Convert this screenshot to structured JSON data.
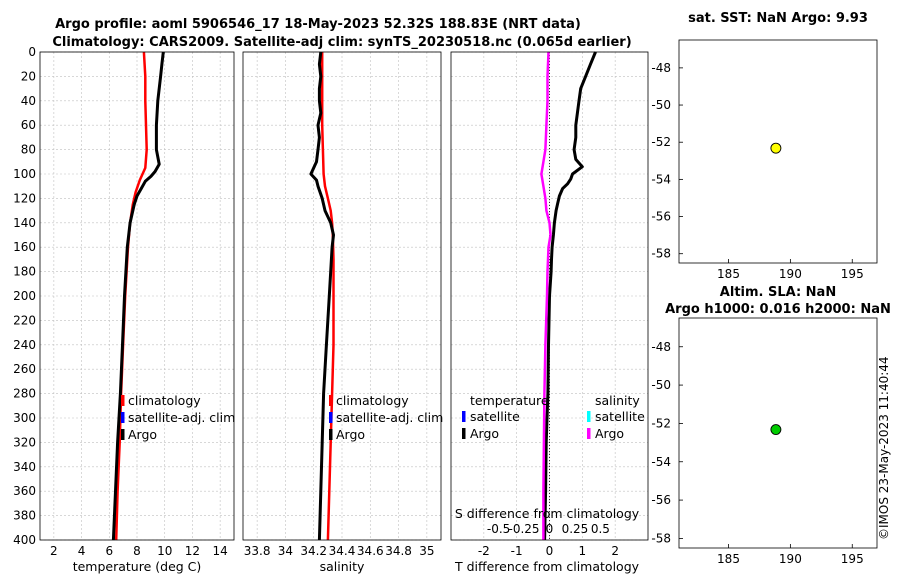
{
  "title": {
    "line1": "Argo profile: aoml 5906546_17 18-May-2023 52.32S 188.83E (NRT data)",
    "line2": "Climatology: CARS2009. Satellite-adj clim: synTS_20230518.nc (0.065d earlier)"
  },
  "timestamp": "©IMOS 23-May-2023 11:40:44",
  "colors": {
    "climatology": "#ff0000",
    "satellite": "#0000ff",
    "argo": "#000000",
    "sal_satellite": "#00ffff",
    "sal_argo": "#ff00ff",
    "sst_dot": "#ffff00",
    "sla_dot": "#00cc00",
    "grid": "#c0c0c0"
  },
  "chart_data": [
    {
      "id": "temperature",
      "type": "line",
      "xlabel": "temperature (deg C)",
      "xlim": [
        1,
        15
      ],
      "xticks": [
        2,
        4,
        6,
        8,
        10,
        12,
        14
      ],
      "ylim": [
        0,
        400
      ],
      "yticks": [
        0,
        20,
        40,
        60,
        80,
        100,
        120,
        140,
        160,
        180,
        200,
        220,
        240,
        260,
        280,
        300,
        320,
        340,
        360,
        380,
        400
      ],
      "legend": [
        "climatology",
        "satellite-adj. clim",
        "Argo"
      ],
      "series": [
        {
          "name": "climatology",
          "depth": [
            0,
            20,
            40,
            60,
            80,
            95,
            105,
            115,
            125,
            140,
            160,
            180,
            200,
            240,
            280,
            320,
            360,
            400
          ],
          "values": [
            8.5,
            8.6,
            8.6,
            8.65,
            8.7,
            8.6,
            8.2,
            7.9,
            7.7,
            7.5,
            7.35,
            7.25,
            7.15,
            7.0,
            6.85,
            6.75,
            6.6,
            6.5
          ]
        },
        {
          "name": "Argo",
          "depth": [
            0,
            10,
            20,
            40,
            60,
            80,
            92,
            98,
            102,
            106,
            112,
            118,
            125,
            140,
            160,
            180,
            200,
            240,
            280,
            320,
            360,
            400
          ],
          "values": [
            9.9,
            9.8,
            9.7,
            9.5,
            9.4,
            9.4,
            9.6,
            9.3,
            9.0,
            8.6,
            8.3,
            8.0,
            7.8,
            7.5,
            7.3,
            7.2,
            7.1,
            6.95,
            6.8,
            6.6,
            6.45,
            6.3
          ]
        }
      ]
    },
    {
      "id": "salinity",
      "type": "line",
      "xlabel": "salinity",
      "xlim": [
        33.7,
        35.1
      ],
      "xticks": [
        33.8,
        34,
        34.2,
        34.4,
        34.6,
        34.8,
        35
      ],
      "xticklabels": [
        "33.8",
        "34",
        "34.2",
        "34.4",
        "34.6",
        "34.8",
        "35"
      ],
      "ylim": [
        0,
        400
      ],
      "legend": [
        "climatology",
        "satellite-adj. clim",
        "Argo"
      ],
      "series": [
        {
          "name": "climatology",
          "depth": [
            0,
            20,
            40,
            60,
            80,
            100,
            110,
            120,
            130,
            140,
            150,
            170,
            200,
            240,
            280,
            320,
            360,
            400
          ],
          "values": [
            34.26,
            34.26,
            34.26,
            34.26,
            34.265,
            34.27,
            34.28,
            34.3,
            34.32,
            34.33,
            34.335,
            34.34,
            34.34,
            34.34,
            34.33,
            34.32,
            34.31,
            34.3
          ]
        },
        {
          "name": "Argo",
          "depth": [
            0,
            10,
            20,
            30,
            40,
            50,
            60,
            70,
            80,
            90,
            95,
            100,
            105,
            110,
            120,
            130,
            140,
            150,
            160,
            180,
            200,
            240,
            280,
            320,
            360,
            400
          ],
          "values": [
            34.25,
            34.24,
            34.25,
            34.24,
            34.24,
            34.25,
            34.23,
            34.24,
            34.23,
            34.22,
            34.2,
            34.18,
            34.22,
            34.23,
            34.26,
            34.28,
            34.32,
            34.34,
            34.33,
            34.32,
            34.31,
            34.29,
            34.27,
            34.26,
            34.25,
            34.24
          ]
        }
      ]
    },
    {
      "id": "difference",
      "type": "line",
      "xlabel": "T difference from climatology",
      "xlabel_top": "S difference from climatology",
      "xlim": [
        -3,
        3
      ],
      "xticks": [
        -2,
        -1,
        0,
        1,
        2
      ],
      "s_ticks": [
        -0.5,
        -0.25,
        0,
        0.25,
        0.5
      ],
      "s_ticklabels": [
        "-0.5",
        "-0.25",
        "0",
        "0.25",
        "0.5"
      ],
      "ylim": [
        0,
        400
      ],
      "legend_left": {
        "title": "temperature",
        "items": [
          "satellite",
          "Argo"
        ]
      },
      "legend_right": {
        "title": "salinity",
        "items": [
          "satellite",
          "Argo"
        ]
      },
      "series": [
        {
          "name": "T Argo",
          "depth": [
            0,
            10,
            20,
            30,
            40,
            50,
            60,
            70,
            80,
            88,
            94,
            100,
            104,
            108,
            112,
            118,
            124,
            130,
            140,
            150,
            160,
            170,
            180,
            200,
            240,
            280,
            320,
            360,
            400
          ],
          "values": [
            1.4,
            1.25,
            1.1,
            0.95,
            0.9,
            0.85,
            0.8,
            0.8,
            0.75,
            0.8,
            1.0,
            0.7,
            0.65,
            0.55,
            0.4,
            0.3,
            0.25,
            0.2,
            0.15,
            0.12,
            0.08,
            0.06,
            0.05,
            0.0,
            -0.03,
            -0.05,
            -0.1,
            -0.12,
            -0.15
          ]
        },
        {
          "name": "S Argo",
          "depth": [
            0,
            20,
            40,
            60,
            80,
            100,
            110,
            120,
            130,
            140,
            150,
            160,
            180,
            200,
            240,
            280,
            320,
            360,
            400
          ],
          "values": [
            -0.01,
            -0.02,
            -0.02,
            -0.03,
            -0.04,
            -0.08,
            -0.06,
            -0.04,
            -0.03,
            0.0,
            0.01,
            -0.01,
            -0.02,
            -0.025,
            -0.04,
            -0.05,
            -0.055,
            -0.06,
            -0.06
          ]
        }
      ]
    },
    {
      "id": "sst_map",
      "type": "scatter",
      "title": "sat. SST: NaN Argo: 9.93",
      "xlim": [
        181,
        197
      ],
      "ylim": [
        -58.5,
        -46.5
      ],
      "xticks": [
        185,
        190,
        195
      ],
      "yticks": [
        -48,
        -50,
        -52,
        -54,
        -56,
        -58
      ],
      "points": [
        {
          "x": 188.83,
          "y": -52.32
        }
      ]
    },
    {
      "id": "sla_map",
      "type": "scatter",
      "title_line1": "Altim. SLA: NaN",
      "title_line2": "Argo h1000: 0.016 h2000: NaN",
      "xlim": [
        181,
        197
      ],
      "ylim": [
        -58.5,
        -46.5
      ],
      "xticks": [
        185,
        190,
        195
      ],
      "yticks": [
        -48,
        -50,
        -52,
        -54,
        -56,
        -58
      ],
      "points": [
        {
          "x": 188.83,
          "y": -52.32
        }
      ]
    }
  ]
}
